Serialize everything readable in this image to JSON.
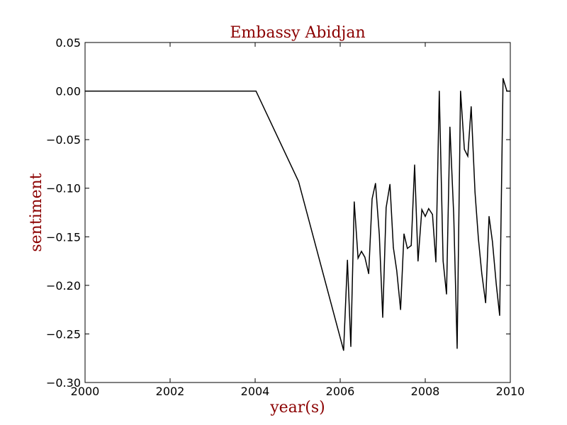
{
  "chart_data": {
    "type": "line",
    "title": "Embassy Abidjan",
    "xlabel": "year(s)",
    "ylabel": "sentiment",
    "xlim": [
      2000,
      2010
    ],
    "ylim": [
      -0.3,
      0.05
    ],
    "grid": false,
    "x_ticks": [
      "2000",
      "2002",
      "2004",
      "2006",
      "2008",
      "2010"
    ],
    "y_ticks": [
      "0.05",
      "0.00",
      "−0.05",
      "−0.10",
      "−0.15",
      "−0.20",
      "−0.25",
      "−0.30"
    ],
    "line_color": "#000000",
    "series": [
      {
        "x": [
          2000.0,
          2004.02,
          2005.02,
          2006.08,
          2006.17,
          2006.25,
          2006.33,
          2006.42,
          2006.5,
          2006.58,
          2006.67,
          2006.75,
          2006.83,
          2006.92,
          2007.0,
          2007.08,
          2007.17,
          2007.25,
          2007.33,
          2007.42,
          2007.5,
          2007.58,
          2007.67,
          2007.75,
          2007.83,
          2007.92,
          2008.0,
          2008.08,
          2008.17,
          2008.25,
          2008.33,
          2008.42,
          2008.5,
          2008.58,
          2008.67,
          2008.75,
          2008.83,
          2008.92,
          2009.0,
          2009.08,
          2009.17,
          2009.25,
          2009.33,
          2009.42,
          2009.5,
          2009.58,
          2009.67,
          2009.75,
          2009.83,
          2009.92,
          2010.0
        ],
        "y": [
          0.0,
          0.0,
          -0.093,
          -0.267,
          -0.174,
          -0.263,
          -0.114,
          -0.172,
          -0.165,
          -0.171,
          -0.188,
          -0.111,
          -0.095,
          -0.148,
          -0.233,
          -0.12,
          -0.096,
          -0.161,
          -0.185,
          -0.225,
          -0.147,
          -0.162,
          -0.159,
          -0.076,
          -0.175,
          -0.122,
          -0.129,
          -0.121,
          -0.127,
          -0.176,
          0.0,
          -0.175,
          -0.209,
          -0.037,
          -0.128,
          -0.265,
          0.0,
          -0.06,
          -0.067,
          -0.016,
          -0.104,
          -0.152,
          -0.188,
          -0.218,
          -0.129,
          -0.155,
          -0.199,
          -0.231,
          0.013,
          0.0,
          0.0
        ]
      }
    ]
  }
}
